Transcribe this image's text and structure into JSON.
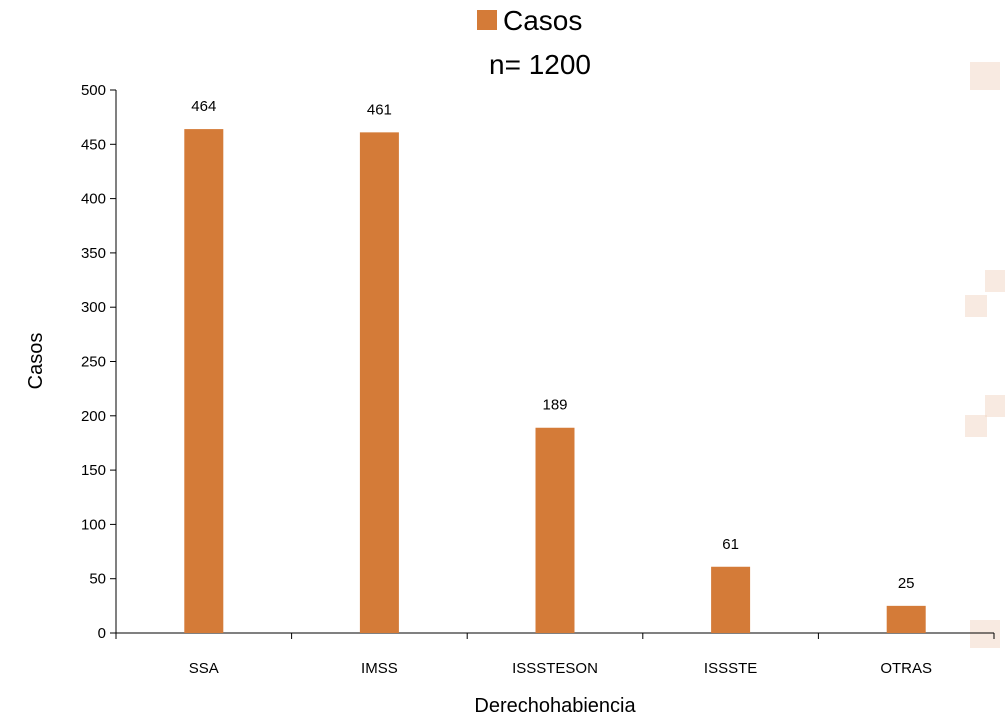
{
  "chart_data": {
    "type": "bar",
    "legend": {
      "entries": [
        "Casos"
      ],
      "placement": "top"
    },
    "subtitle": "n= 1200",
    "categories": [
      "SSA",
      "IMSS",
      "ISSSTESON",
      "ISSSTE",
      "OTRAS"
    ],
    "series": [
      {
        "name": "Casos",
        "values": [
          464,
          461,
          189,
          61,
          25
        ],
        "color": "#d47b38"
      }
    ],
    "data_labels": [
      "464",
      "461",
      "189",
      "61",
      "25"
    ],
    "xlabel": "Derechohabiencia",
    "ylabel": "Casos",
    "ylim": [
      0,
      500
    ],
    "y_ticks": [
      0,
      50,
      100,
      150,
      200,
      250,
      300,
      350,
      400,
      450,
      500
    ],
    "grid": false
  }
}
